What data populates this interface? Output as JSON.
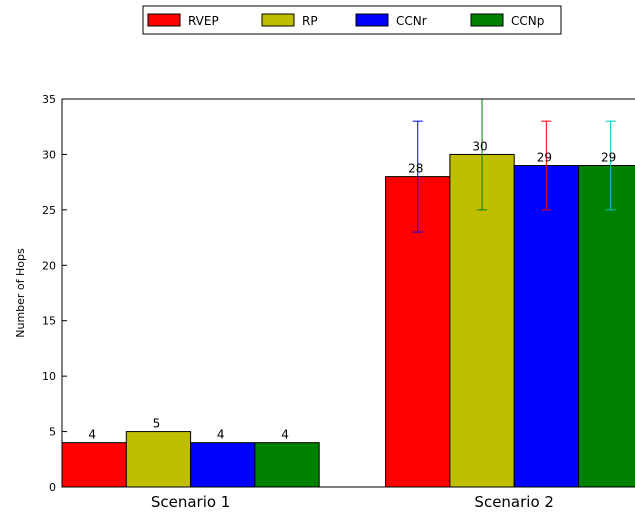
{
  "chart_data": {
    "type": "bar",
    "categories": [
      "Scenario 1",
      "Scenario 2"
    ],
    "series": [
      {
        "name": "RVEP",
        "color": "#ff0000",
        "error_color": "#0000ff",
        "values": [
          4,
          28
        ],
        "errors": [
          [
            null,
            null
          ],
          [
            23,
            33
          ]
        ],
        "labels": [
          "4",
          "28"
        ]
      },
      {
        "name": "RP",
        "color": "#bfbf00",
        "error_color": "#008000",
        "values": [
          5,
          30
        ],
        "errors": [
          [
            null,
            null
          ],
          [
            25,
            35
          ]
        ],
        "labels": [
          "5",
          "30"
        ]
      },
      {
        "name": "CCNr",
        "color": "#0000ff",
        "error_color": "#ff0000",
        "values": [
          4,
          29
        ],
        "errors": [
          [
            null,
            null
          ],
          [
            25,
            33
          ]
        ],
        "labels": [
          "4",
          "29"
        ]
      },
      {
        "name": "CCNp",
        "color": "#008000",
        "error_color": "#00bfbf",
        "values": [
          4,
          29
        ],
        "errors": [
          [
            null,
            null
          ],
          [
            25,
            33
          ]
        ],
        "labels": [
          "4",
          "29"
        ]
      }
    ],
    "xlabel": "",
    "ylabel": "Number of Hops",
    "ylim": [
      0,
      35
    ],
    "yticks": [
      0,
      5,
      10,
      15,
      20,
      25,
      30,
      35
    ],
    "legend_position": "top-center",
    "grid": false
  }
}
